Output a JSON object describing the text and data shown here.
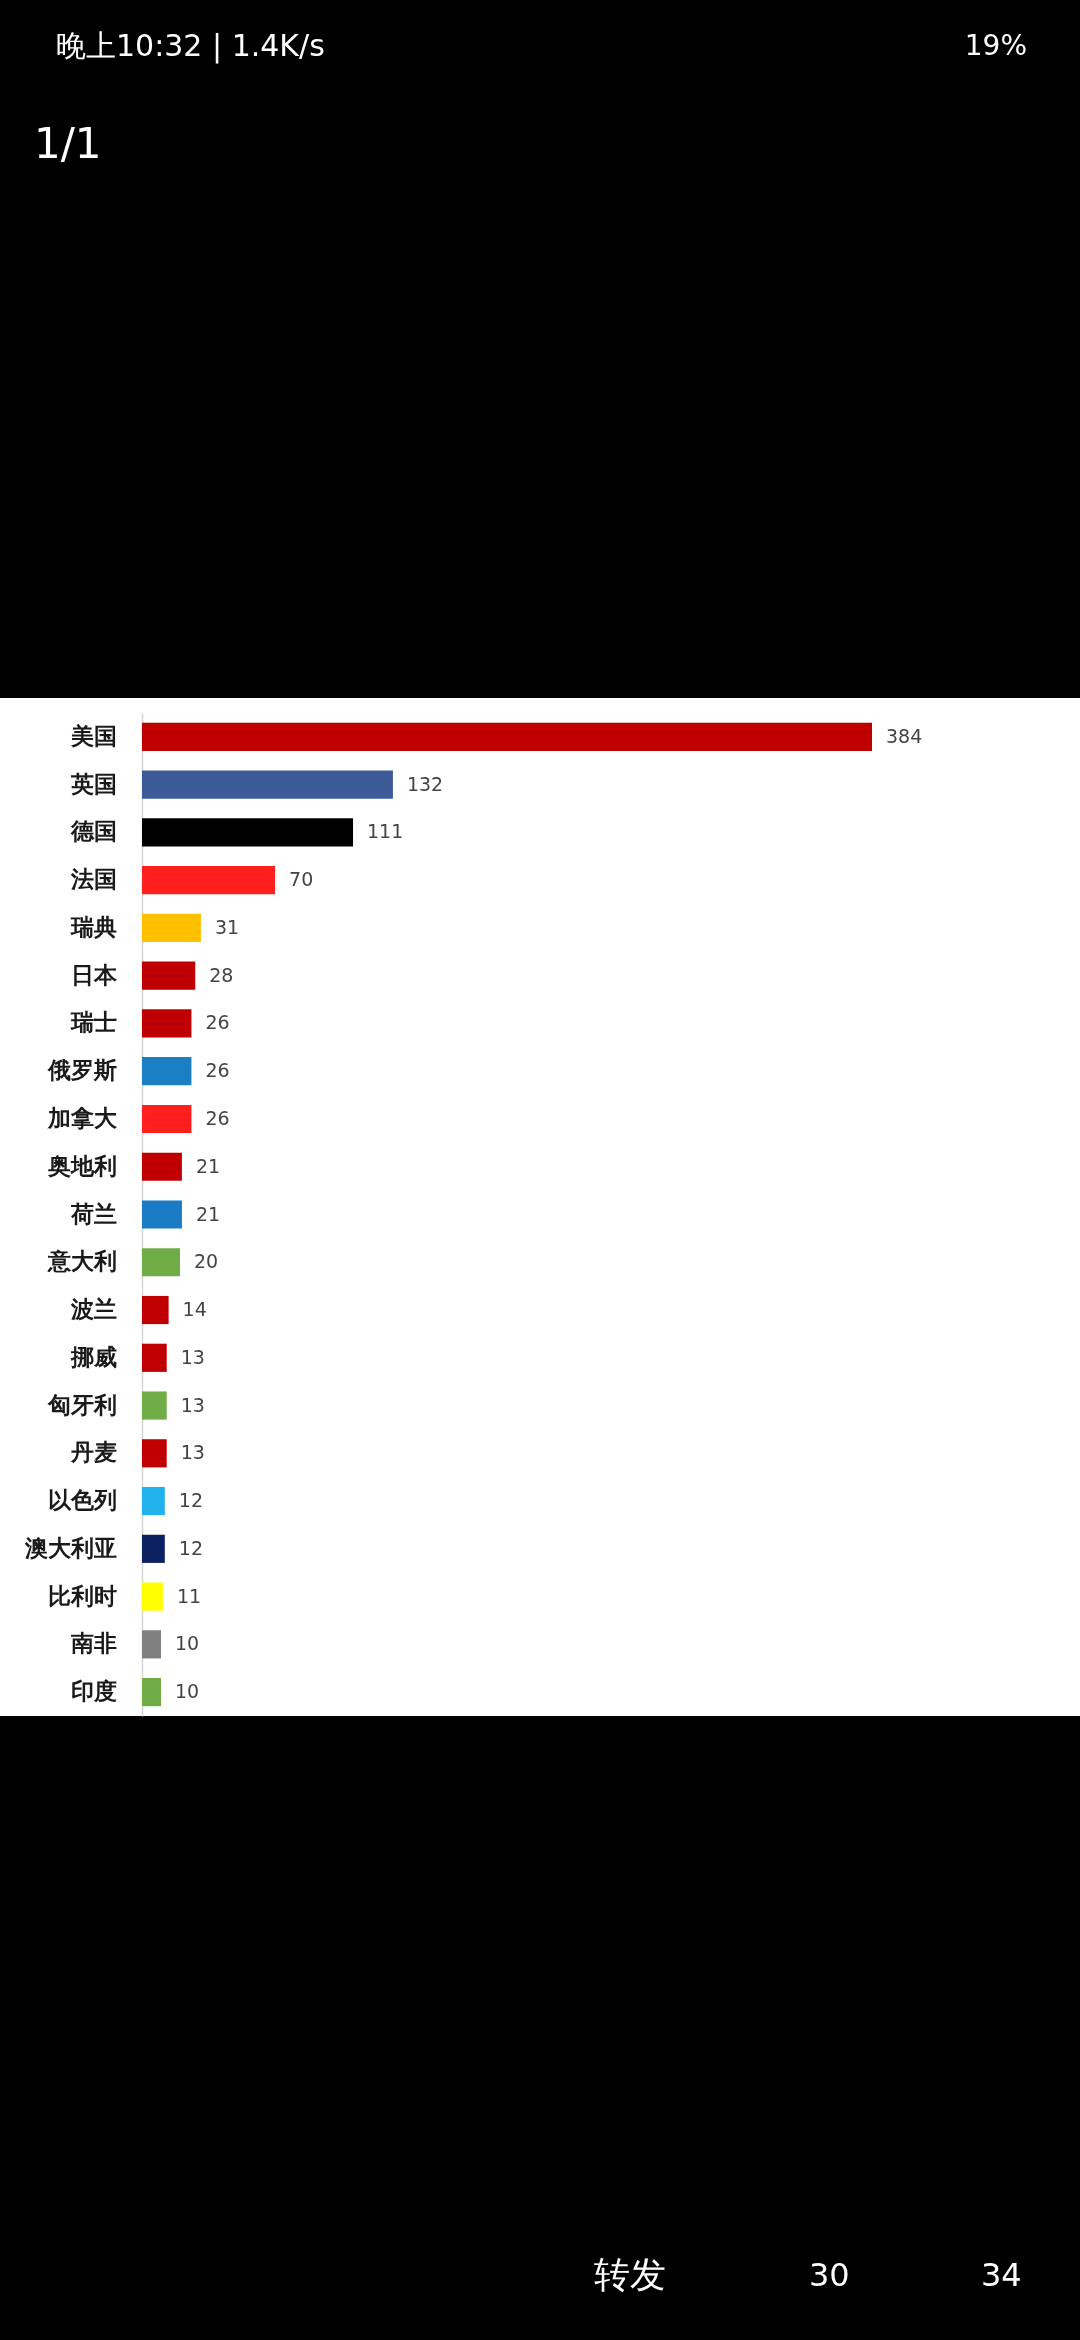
{
  "chart_data": {
    "type": "bar",
    "orientation": "horizontal",
    "tick_labels": "y",
    "data_labels": true,
    "categories": [
      "美国",
      "英国",
      "德国",
      "法国",
      "瑞典",
      "日本",
      "瑞士",
      "俄罗斯",
      "加拿大",
      "奥地利",
      "荷兰",
      "意大利",
      "波兰",
      "挪威",
      "匈牙利",
      "丹麦",
      "以色列",
      "澳大利亚",
      "比利时",
      "南非",
      "印度"
    ],
    "values": [
      384,
      132,
      111,
      70,
      31,
      28,
      26,
      26,
      26,
      21,
      21,
      20,
      14,
      13,
      13,
      13,
      12,
      12,
      11,
      10,
      10
    ],
    "colors": [
      "#c00000",
      "#3d5a98",
      "#000000",
      "#ff1f1f",
      "#ffc000",
      "#c00000",
      "#c00000",
      "#1b7fc6",
      "#ff1f1f",
      "#c00000",
      "#1a7cc4",
      "#70ad47",
      "#c00000",
      "#c00000",
      "#70ad47",
      "#c00000",
      "#21b1ec",
      "#0c2161",
      "#ffff00",
      "#808080",
      "#70ad47"
    ],
    "annotations": [
      "晚上10:32 | 1.4K/s",
      "19%",
      "1/1",
      "转发",
      "30",
      "34"
    ]
  }
}
